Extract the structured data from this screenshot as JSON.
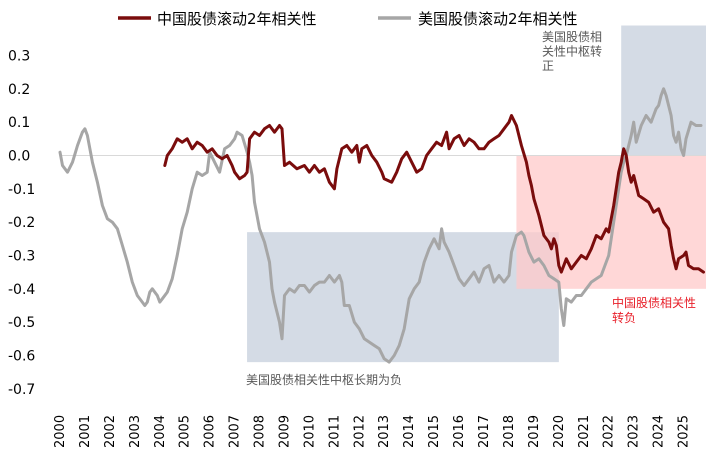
{
  "chart_data": {
    "type": "line",
    "title": "",
    "xlabel": "",
    "ylabel": "",
    "xlim": [
      2000,
      2025.9
    ],
    "ylim": [
      -0.7,
      0.35
    ],
    "y_ticks": [
      "0.3",
      "0.2",
      "0.1",
      "0.0",
      "-0.1",
      "-0.2",
      "-0.3",
      "-0.4",
      "-0.5",
      "-0.6",
      "-0.7"
    ],
    "y_tick_values": [
      0.3,
      0.2,
      0.1,
      0.0,
      -0.1,
      -0.2,
      -0.3,
      -0.4,
      -0.5,
      -0.6,
      -0.7
    ],
    "x_ticks": [
      "2000",
      "2001",
      "2002",
      "2003",
      "2004",
      "2005",
      "2006",
      "2007",
      "2008",
      "2009",
      "2010",
      "2011",
      "2012",
      "2013",
      "2014",
      "2015",
      "2016",
      "2017",
      "2018",
      "2019",
      "2020",
      "2021",
      "2022",
      "2023",
      "2024",
      "2025"
    ],
    "legend_position": "top",
    "series": [
      {
        "name": "中国股债滚动2年相关性",
        "color": "#7a0c0c",
        "points": [
          [
            2004.2,
            -0.03
          ],
          [
            2004.3,
            0.0
          ],
          [
            2004.5,
            0.02
          ],
          [
            2004.7,
            0.05
          ],
          [
            2004.9,
            0.04
          ],
          [
            2005.1,
            0.05
          ],
          [
            2005.3,
            0.02
          ],
          [
            2005.5,
            0.04
          ],
          [
            2005.7,
            0.03
          ],
          [
            2005.9,
            0.01
          ],
          [
            2006.1,
            0.02
          ],
          [
            2006.3,
            0.0
          ],
          [
            2006.5,
            -0.01
          ],
          [
            2006.7,
            0.0
          ],
          [
            2006.9,
            -0.03
          ],
          [
            2007.0,
            -0.05
          ],
          [
            2007.2,
            -0.07
          ],
          [
            2007.4,
            -0.06
          ],
          [
            2007.5,
            -0.05
          ],
          [
            2007.6,
            0.05
          ],
          [
            2007.8,
            0.07
          ],
          [
            2008.0,
            0.06
          ],
          [
            2008.2,
            0.08
          ],
          [
            2008.4,
            0.09
          ],
          [
            2008.6,
            0.07
          ],
          [
            2008.8,
            0.09
          ],
          [
            2008.9,
            0.08
          ],
          [
            2009.0,
            -0.03
          ],
          [
            2009.2,
            -0.02
          ],
          [
            2009.5,
            -0.04
          ],
          [
            2009.8,
            -0.03
          ],
          [
            2010.0,
            -0.05
          ],
          [
            2010.2,
            -0.03
          ],
          [
            2010.4,
            -0.05
          ],
          [
            2010.6,
            -0.04
          ],
          [
            2010.8,
            -0.08
          ],
          [
            2011.0,
            -0.1
          ],
          [
            2011.1,
            -0.04
          ],
          [
            2011.3,
            0.02
          ],
          [
            2011.5,
            0.03
          ],
          [
            2011.7,
            0.01
          ],
          [
            2011.9,
            0.03
          ],
          [
            2012.0,
            -0.02
          ],
          [
            2012.1,
            0.02
          ],
          [
            2012.3,
            0.03
          ],
          [
            2012.5,
            0.0
          ],
          [
            2012.7,
            -0.02
          ],
          [
            2012.9,
            -0.05
          ],
          [
            2013.0,
            -0.07
          ],
          [
            2013.3,
            -0.08
          ],
          [
            2013.5,
            -0.05
          ],
          [
            2013.7,
            -0.01
          ],
          [
            2013.9,
            0.01
          ],
          [
            2014.1,
            -0.02
          ],
          [
            2014.3,
            -0.05
          ],
          [
            2014.5,
            -0.04
          ],
          [
            2014.7,
            0.0
          ],
          [
            2014.9,
            0.02
          ],
          [
            2015.1,
            0.04
          ],
          [
            2015.3,
            0.03
          ],
          [
            2015.5,
            0.07
          ],
          [
            2015.6,
            0.02
          ],
          [
            2015.8,
            0.05
          ],
          [
            2016.0,
            0.06
          ],
          [
            2016.2,
            0.03
          ],
          [
            2016.4,
            0.05
          ],
          [
            2016.6,
            0.04
          ],
          [
            2016.8,
            0.02
          ],
          [
            2017.0,
            0.02
          ],
          [
            2017.2,
            0.04
          ],
          [
            2017.4,
            0.05
          ],
          [
            2017.6,
            0.06
          ],
          [
            2017.8,
            0.08
          ],
          [
            2018.0,
            0.1
          ],
          [
            2018.1,
            0.12
          ],
          [
            2018.3,
            0.09
          ],
          [
            2018.5,
            0.03
          ],
          [
            2018.7,
            -0.02
          ],
          [
            2018.8,
            -0.06
          ],
          [
            2018.9,
            -0.09
          ],
          [
            2019.0,
            -0.13
          ],
          [
            2019.2,
            -0.18
          ],
          [
            2019.4,
            -0.24
          ],
          [
            2019.6,
            -0.26
          ],
          [
            2019.7,
            -0.28
          ],
          [
            2019.8,
            -0.25
          ],
          [
            2019.9,
            -0.27
          ],
          [
            2020.0,
            -0.33
          ],
          [
            2020.1,
            -0.35
          ],
          [
            2020.3,
            -0.31
          ],
          [
            2020.5,
            -0.34
          ],
          [
            2020.7,
            -0.32
          ],
          [
            2020.9,
            -0.3
          ],
          [
            2021.1,
            -0.31
          ],
          [
            2021.3,
            -0.28
          ],
          [
            2021.5,
            -0.24
          ],
          [
            2021.7,
            -0.25
          ],
          [
            2021.9,
            -0.22
          ],
          [
            2022.0,
            -0.23
          ],
          [
            2022.2,
            -0.15
          ],
          [
            2022.4,
            -0.05
          ],
          [
            2022.5,
            -0.02
          ],
          [
            2022.6,
            0.02
          ],
          [
            2022.7,
            0.0
          ],
          [
            2022.8,
            -0.05
          ],
          [
            2022.9,
            -0.08
          ],
          [
            2023.0,
            -0.06
          ],
          [
            2023.2,
            -0.12
          ],
          [
            2023.4,
            -0.13
          ],
          [
            2023.6,
            -0.14
          ],
          [
            2023.8,
            -0.17
          ],
          [
            2024.0,
            -0.16
          ],
          [
            2024.2,
            -0.2
          ],
          [
            2024.4,
            -0.22
          ],
          [
            2024.5,
            -0.27
          ],
          [
            2024.6,
            -0.31
          ],
          [
            2024.7,
            -0.34
          ],
          [
            2024.8,
            -0.31
          ],
          [
            2025.0,
            -0.3
          ],
          [
            2025.1,
            -0.29
          ],
          [
            2025.2,
            -0.33
          ],
          [
            2025.4,
            -0.34
          ],
          [
            2025.6,
            -0.34
          ],
          [
            2025.8,
            -0.35
          ]
        ]
      },
      {
        "name": "美国股债滚动2年相关性",
        "color": "#a6a6a6",
        "points": [
          [
            2000.0,
            0.01
          ],
          [
            2000.1,
            -0.03
          ],
          [
            2000.3,
            -0.05
          ],
          [
            2000.5,
            -0.02
          ],
          [
            2000.7,
            0.03
          ],
          [
            2000.9,
            0.07
          ],
          [
            2001.0,
            0.08
          ],
          [
            2001.1,
            0.06
          ],
          [
            2001.3,
            -0.02
          ],
          [
            2001.5,
            -0.08
          ],
          [
            2001.7,
            -0.15
          ],
          [
            2001.9,
            -0.19
          ],
          [
            2002.1,
            -0.2
          ],
          [
            2002.3,
            -0.22
          ],
          [
            2002.5,
            -0.27
          ],
          [
            2002.7,
            -0.32
          ],
          [
            2002.9,
            -0.38
          ],
          [
            2003.1,
            -0.42
          ],
          [
            2003.3,
            -0.44
          ],
          [
            2003.4,
            -0.45
          ],
          [
            2003.5,
            -0.44
          ],
          [
            2003.6,
            -0.41
          ],
          [
            2003.7,
            -0.4
          ],
          [
            2003.9,
            -0.42
          ],
          [
            2004.0,
            -0.44
          ],
          [
            2004.1,
            -0.43
          ],
          [
            2004.3,
            -0.41
          ],
          [
            2004.5,
            -0.37
          ],
          [
            2004.7,
            -0.3
          ],
          [
            2004.9,
            -0.22
          ],
          [
            2005.1,
            -0.17
          ],
          [
            2005.3,
            -0.1
          ],
          [
            2005.5,
            -0.05
          ],
          [
            2005.7,
            -0.06
          ],
          [
            2005.9,
            -0.05
          ],
          [
            2006.0,
            0.01
          ],
          [
            2006.2,
            -0.02
          ],
          [
            2006.4,
            -0.05
          ],
          [
            2006.6,
            0.02
          ],
          [
            2006.8,
            0.03
          ],
          [
            2007.0,
            0.05
          ],
          [
            2007.1,
            0.07
          ],
          [
            2007.3,
            0.06
          ],
          [
            2007.5,
            0.01
          ],
          [
            2007.6,
            -0.02
          ],
          [
            2007.7,
            -0.06
          ],
          [
            2007.8,
            -0.14
          ],
          [
            2008.0,
            -0.22
          ],
          [
            2008.2,
            -0.26
          ],
          [
            2008.4,
            -0.32
          ],
          [
            2008.5,
            -0.4
          ],
          [
            2008.6,
            -0.44
          ],
          [
            2008.7,
            -0.47
          ],
          [
            2008.8,
            -0.5
          ],
          [
            2008.9,
            -0.55
          ],
          [
            2009.0,
            -0.42
          ],
          [
            2009.2,
            -0.4
          ],
          [
            2009.4,
            -0.41
          ],
          [
            2009.6,
            -0.39
          ],
          [
            2009.8,
            -0.39
          ],
          [
            2010.0,
            -0.41
          ],
          [
            2010.2,
            -0.39
          ],
          [
            2010.4,
            -0.38
          ],
          [
            2010.6,
            -0.38
          ],
          [
            2010.8,
            -0.36
          ],
          [
            2011.0,
            -0.38
          ],
          [
            2011.2,
            -0.36
          ],
          [
            2011.3,
            -0.38
          ],
          [
            2011.4,
            -0.45
          ],
          [
            2011.6,
            -0.45
          ],
          [
            2011.8,
            -0.5
          ],
          [
            2012.0,
            -0.52
          ],
          [
            2012.2,
            -0.55
          ],
          [
            2012.4,
            -0.56
          ],
          [
            2012.6,
            -0.57
          ],
          [
            2012.8,
            -0.58
          ],
          [
            2013.0,
            -0.61
          ],
          [
            2013.2,
            -0.62
          ],
          [
            2013.4,
            -0.6
          ],
          [
            2013.6,
            -0.57
          ],
          [
            2013.8,
            -0.52
          ],
          [
            2014.0,
            -0.43
          ],
          [
            2014.2,
            -0.4
          ],
          [
            2014.4,
            -0.38
          ],
          [
            2014.6,
            -0.32
          ],
          [
            2014.8,
            -0.28
          ],
          [
            2015.0,
            -0.25
          ],
          [
            2015.2,
            -0.28
          ],
          [
            2015.3,
            -0.22
          ],
          [
            2015.4,
            -0.26
          ],
          [
            2015.6,
            -0.29
          ],
          [
            2015.8,
            -0.33
          ],
          [
            2016.0,
            -0.37
          ],
          [
            2016.2,
            -0.39
          ],
          [
            2016.4,
            -0.37
          ],
          [
            2016.6,
            -0.35
          ],
          [
            2016.8,
            -0.38
          ],
          [
            2017.0,
            -0.34
          ],
          [
            2017.2,
            -0.33
          ],
          [
            2017.4,
            -0.38
          ],
          [
            2017.6,
            -0.36
          ],
          [
            2017.8,
            -0.38
          ],
          [
            2018.0,
            -0.36
          ],
          [
            2018.1,
            -0.29
          ],
          [
            2018.3,
            -0.24
          ],
          [
            2018.5,
            -0.23
          ],
          [
            2018.6,
            -0.24
          ],
          [
            2018.8,
            -0.29
          ],
          [
            2019.0,
            -0.32
          ],
          [
            2019.2,
            -0.31
          ],
          [
            2019.4,
            -0.33
          ],
          [
            2019.6,
            -0.36
          ],
          [
            2019.8,
            -0.37
          ],
          [
            2020.0,
            -0.38
          ],
          [
            2020.1,
            -0.46
          ],
          [
            2020.2,
            -0.51
          ],
          [
            2020.3,
            -0.43
          ],
          [
            2020.5,
            -0.44
          ],
          [
            2020.7,
            -0.42
          ],
          [
            2020.9,
            -0.42
          ],
          [
            2021.1,
            -0.4
          ],
          [
            2021.3,
            -0.38
          ],
          [
            2021.5,
            -0.37
          ],
          [
            2021.7,
            -0.36
          ],
          [
            2021.9,
            -0.32
          ],
          [
            2022.0,
            -0.3
          ],
          [
            2022.1,
            -0.25
          ],
          [
            2022.2,
            -0.2
          ],
          [
            2022.4,
            -0.1
          ],
          [
            2022.5,
            -0.05
          ],
          [
            2022.6,
            -0.02
          ],
          [
            2022.7,
            0.0
          ],
          [
            2022.8,
            0.03
          ],
          [
            2022.9,
            0.06
          ],
          [
            2023.0,
            0.1
          ],
          [
            2023.1,
            0.04
          ],
          [
            2023.3,
            0.09
          ],
          [
            2023.5,
            0.12
          ],
          [
            2023.7,
            0.1
          ],
          [
            2023.8,
            0.12
          ],
          [
            2023.9,
            0.14
          ],
          [
            2024.0,
            0.15
          ],
          [
            2024.1,
            0.18
          ],
          [
            2024.2,
            0.2
          ],
          [
            2024.3,
            0.18
          ],
          [
            2024.5,
            0.12
          ],
          [
            2024.6,
            0.06
          ],
          [
            2024.7,
            0.04
          ],
          [
            2024.8,
            0.07
          ],
          [
            2024.9,
            0.02
          ],
          [
            2025.0,
            0.0
          ],
          [
            2025.1,
            0.05
          ],
          [
            2025.3,
            0.1
          ],
          [
            2025.5,
            0.09
          ],
          [
            2025.7,
            0.09
          ]
        ]
      }
    ],
    "shaded_regions": [
      {
        "x": [
          2007.5,
          2020.0
        ],
        "y": [
          -0.62,
          -0.23
        ],
        "color": "#ccd5e0",
        "label": "美国股债相关性中枢长期为负"
      },
      {
        "x": [
          2022.5,
          2025.9
        ],
        "y": [
          0.0,
          0.39
        ],
        "color": "#ccd5e0",
        "label": "美国股债相\n关性中枢转\n正"
      },
      {
        "x": [
          2018.3,
          2025.9
        ],
        "y": [
          -0.4,
          0.0
        ],
        "color": "#ffc9c9",
        "label": "中国股债相关性\n转负"
      }
    ],
    "annotation_colors": [
      "#595959",
      "#595959",
      "#e8202a"
    ]
  }
}
